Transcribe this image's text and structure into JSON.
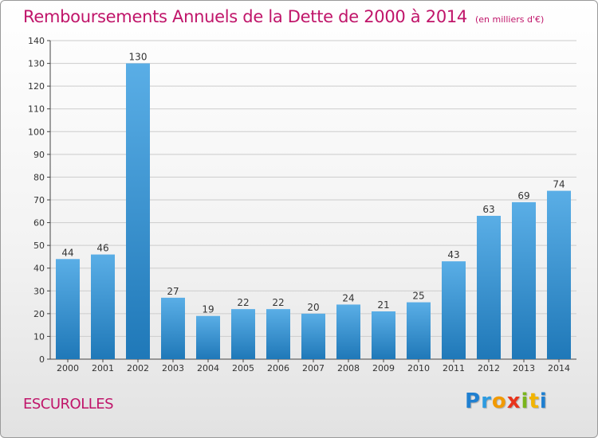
{
  "header": {
    "title": "Remboursements Annuels de la Dette de 2000 à 2014",
    "unit": "(en milliers d'€)"
  },
  "footer": {
    "commune": "ESCUROLLES",
    "logo_letters": [
      "P",
      "r",
      "o",
      "x",
      "i",
      "t",
      "i"
    ]
  },
  "colors": {
    "title": "#c0156a",
    "bar_top": "#5aaee6",
    "bar_bottom": "#1f78b8",
    "grid": "#cccccc"
  },
  "chart_data": {
    "type": "bar",
    "title": "Remboursements Annuels de la Dette de 2000 à 2014",
    "categories": [
      "2000",
      "2001",
      "2002",
      "2003",
      "2004",
      "2005",
      "2006",
      "2007",
      "2008",
      "2009",
      "2010",
      "2011",
      "2012",
      "2013",
      "2014"
    ],
    "values": [
      44,
      46,
      130,
      27,
      19,
      22,
      22,
      20,
      24,
      21,
      25,
      43,
      63,
      69,
      74
    ],
    "ylim": [
      0,
      140
    ],
    "yticks": [
      0,
      10,
      20,
      30,
      40,
      50,
      60,
      70,
      80,
      90,
      100,
      110,
      120,
      130,
      140
    ],
    "grid": true,
    "data_labels": true
  }
}
